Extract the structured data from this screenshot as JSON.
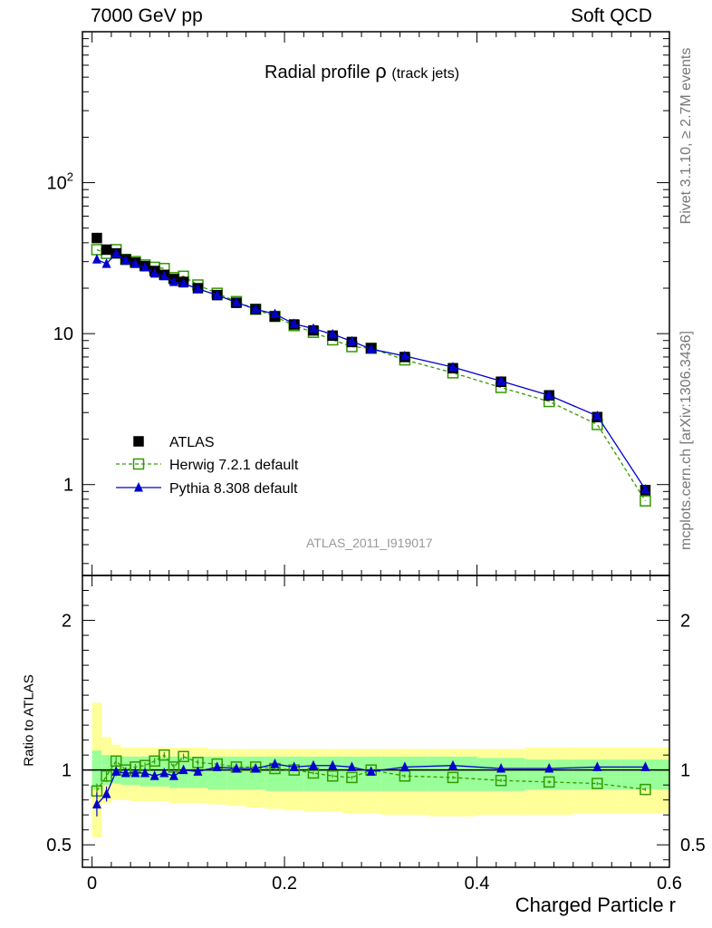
{
  "header": {
    "energy": "7000 GeV pp",
    "category": "Soft QCD"
  },
  "side_text": {
    "rivet": "Rivet 3.1.10, ≥ 2.7M events",
    "source": "mcplots.cern.ch [arXiv:1306.3436]"
  },
  "chart_data": [
    {
      "type": "scatter",
      "title": "Radial profile ρ (track jets)",
      "title_main": "Radial profile",
      "title_rho": "ρ",
      "title_sub": "(track jets)",
      "analysis_id": "ATLAS_2011_I919017",
      "xlabel": "Charged Particle r",
      "ylabel": "",
      "yscale": "log",
      "xlim": [
        -0.01,
        0.6
      ],
      "ylim": [
        0.25,
        1000
      ],
      "y_tick_labels": [
        {
          "value": 1,
          "label": "1"
        },
        {
          "value": 10,
          "label": "10"
        },
        {
          "value": 100,
          "label": "10",
          "sup": "2"
        }
      ],
      "legend_position": "bottom-left",
      "x": [
        0.005,
        0.015,
        0.025,
        0.035,
        0.045,
        0.055,
        0.065,
        0.075,
        0.085,
        0.095,
        0.11,
        0.13,
        0.15,
        0.17,
        0.19,
        0.21,
        0.23,
        0.25,
        0.27,
        0.29,
        0.325,
        0.375,
        0.425,
        0.475,
        0.525,
        0.575
      ],
      "series": [
        {
          "name": "ATLAS",
          "style": "data",
          "color": "#000000",
          "values": [
            43,
            36,
            34,
            31,
            29.5,
            28,
            26,
            24.5,
            23,
            22,
            20,
            18,
            16,
            14.5,
            13,
            11.5,
            10.5,
            9.7,
            8.8,
            8.0,
            7.0,
            5.9,
            4.8,
            3.9,
            2.8,
            0.92
          ]
        },
        {
          "name": "Herwig 7.2.1 default",
          "style": "dashed-open-square",
          "color": "#339900",
          "values": [
            36,
            34,
            36,
            31,
            30,
            28.5,
            27.5,
            27,
            23.5,
            24,
            21,
            18.5,
            16.3,
            14.5,
            13,
            11.3,
            10.2,
            9.1,
            8.2,
            8.0,
            6.7,
            5.5,
            4.4,
            3.55,
            2.5,
            0.78
          ]
        },
        {
          "name": "Pythia 8.308 default",
          "style": "solid-filled-triangle",
          "color": "#0000cc",
          "values": [
            31,
            29,
            34,
            30.5,
            29,
            27.5,
            25,
            24,
            22,
            21.5,
            19.8,
            18,
            16.1,
            14.5,
            13.5,
            11.6,
            10.8,
            9.9,
            8.9,
            7.9,
            7.1,
            6.0,
            4.85,
            3.9,
            2.85,
            0.93
          ]
        }
      ]
    },
    {
      "type": "scatter",
      "title": "",
      "ylabel": "Ratio to ATLAS",
      "xlabel": "Charged Particle r",
      "xlim": [
        -0.01,
        0.6
      ],
      "ylim": [
        0.35,
        2.3
      ],
      "x_tick_labels": [
        {
          "value": 0,
          "label": "0"
        },
        {
          "value": 0.2,
          "label": "0.2"
        },
        {
          "value": 0.4,
          "label": "0.4"
        },
        {
          "value": 0.6,
          "label": "0.6"
        }
      ],
      "y_tick_labels": [
        {
          "value": 0.5,
          "label": "0.5"
        },
        {
          "value": 1,
          "label": "1"
        },
        {
          "value": 2,
          "label": "2"
        }
      ],
      "bins": [
        [
          0,
          0.01
        ],
        [
          0.01,
          0.02
        ],
        [
          0.02,
          0.03
        ],
        [
          0.03,
          0.04
        ],
        [
          0.04,
          0.05
        ],
        [
          0.05,
          0.06
        ],
        [
          0.06,
          0.07
        ],
        [
          0.07,
          0.08
        ],
        [
          0.08,
          0.09
        ],
        [
          0.09,
          0.1
        ],
        [
          0.1,
          0.12
        ],
        [
          0.12,
          0.14
        ],
        [
          0.14,
          0.16
        ],
        [
          0.16,
          0.18
        ],
        [
          0.18,
          0.2
        ],
        [
          0.2,
          0.22
        ],
        [
          0.22,
          0.24
        ],
        [
          0.24,
          0.26
        ],
        [
          0.26,
          0.28
        ],
        [
          0.28,
          0.3
        ],
        [
          0.3,
          0.35
        ],
        [
          0.35,
          0.4
        ],
        [
          0.4,
          0.45
        ],
        [
          0.45,
          0.5
        ],
        [
          0.5,
          0.55
        ],
        [
          0.55,
          0.6
        ]
      ],
      "band_outer_colour": "#ffff99",
      "band_inner_colour": "#99ff99",
      "band_outer": {
        "low": [
          0.55,
          0.78,
          0.8,
          0.8,
          0.79,
          0.79,
          0.79,
          0.79,
          0.78,
          0.78,
          0.78,
          0.77,
          0.76,
          0.75,
          0.74,
          0.73,
          0.72,
          0.72,
          0.71,
          0.71,
          0.7,
          0.69,
          0.7,
          0.7,
          0.71,
          0.71
        ],
        "high": [
          1.45,
          1.22,
          1.17,
          1.15,
          1.15,
          1.15,
          1.15,
          1.15,
          1.15,
          1.15,
          1.15,
          1.14,
          1.14,
          1.14,
          1.14,
          1.14,
          1.14,
          1.14,
          1.14,
          1.14,
          1.14,
          1.14,
          1.14,
          1.15,
          1.15,
          1.15
        ]
      },
      "band_inner": {
        "low": [
          0.87,
          0.9,
          0.91,
          0.9,
          0.9,
          0.89,
          0.89,
          0.89,
          0.88,
          0.88,
          0.88,
          0.87,
          0.87,
          0.87,
          0.86,
          0.86,
          0.86,
          0.86,
          0.86,
          0.86,
          0.86,
          0.86,
          0.86,
          0.87,
          0.87,
          0.87
        ],
        "high": [
          1.13,
          1.1,
          1.09,
          1.09,
          1.09,
          1.09,
          1.09,
          1.09,
          1.09,
          1.09,
          1.09,
          1.09,
          1.09,
          1.09,
          1.09,
          1.09,
          1.09,
          1.09,
          1.09,
          1.09,
          1.09,
          1.09,
          1.08,
          1.07,
          1.07,
          1.07
        ]
      },
      "series": [
        {
          "name": "Herwig 7.2.1 default",
          "color": "#339900",
          "values": [
            0.86,
            0.96,
            1.06,
            1.0,
            1.02,
            1.03,
            1.06,
            1.1,
            1.02,
            1.09,
            1.05,
            1.04,
            1.02,
            1.02,
            1.01,
            1.0,
            0.98,
            0.96,
            0.95,
            1.0,
            0.96,
            0.95,
            0.93,
            0.92,
            0.91,
            0.87
          ],
          "err": [
            0.05,
            0.04,
            0.03,
            0.02,
            0.02,
            0.02,
            0.02,
            0.02,
            0.02,
            0.02,
            0.02,
            0.01,
            0.01,
            0.01,
            0.01,
            0.01,
            0.01,
            0.01,
            0.01,
            0.01,
            0.01,
            0.01,
            0.01,
            0.01,
            0.01,
            0.01
          ]
        },
        {
          "name": "Pythia 8.308 default",
          "color": "#0000cc",
          "values": [
            0.77,
            0.84,
            0.99,
            0.98,
            0.98,
            0.98,
            0.96,
            0.98,
            0.96,
            1.0,
            0.99,
            1.02,
            1.01,
            1.01,
            1.04,
            1.02,
            1.03,
            1.03,
            1.02,
            0.99,
            1.02,
            1.03,
            1.01,
            1.01,
            1.02,
            1.02
          ],
          "err": [
            0.08,
            0.05,
            0.03,
            0.02,
            0.02,
            0.02,
            0.02,
            0.02,
            0.02,
            0.02,
            0.02,
            0.01,
            0.01,
            0.01,
            0.01,
            0.01,
            0.01,
            0.01,
            0.01,
            0.01,
            0.01,
            0.01,
            0.01,
            0.01,
            0.01,
            0.01
          ]
        }
      ]
    }
  ]
}
